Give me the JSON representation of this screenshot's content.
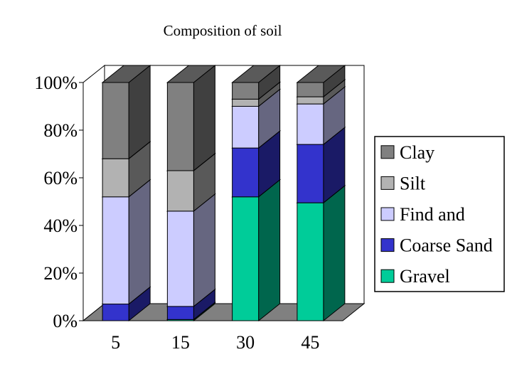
{
  "chart_data": {
    "type": "bar",
    "stacked": true,
    "percent_stacked": true,
    "three_d": true,
    "title": "Composition of soil",
    "xlabel": "",
    "ylabel": "",
    "categories": [
      "5",
      "15",
      "30",
      "45"
    ],
    "y_ticks": [
      "0%",
      "20%",
      "40%",
      "60%",
      "80%",
      "100%"
    ],
    "ylim": [
      0,
      100
    ],
    "legend_position": "right",
    "series": [
      {
        "name": "Gravel",
        "values": [
          0,
          0.5,
          52,
          49.5
        ],
        "color": "#00CC99"
      },
      {
        "name": "Coarse Sand",
        "values": [
          7,
          5.5,
          20.5,
          24.5
        ],
        "color": "#3333CC"
      },
      {
        "name": "Find and",
        "values": [
          45,
          40,
          17.5,
          17
        ],
        "color": "#CCCCFF"
      },
      {
        "name": "Silt",
        "values": [
          16,
          17,
          3,
          3
        ],
        "color": "#B2B2B2"
      },
      {
        "name": "Clay",
        "values": [
          32,
          37,
          7,
          6
        ],
        "color": "#808080"
      }
    ]
  }
}
